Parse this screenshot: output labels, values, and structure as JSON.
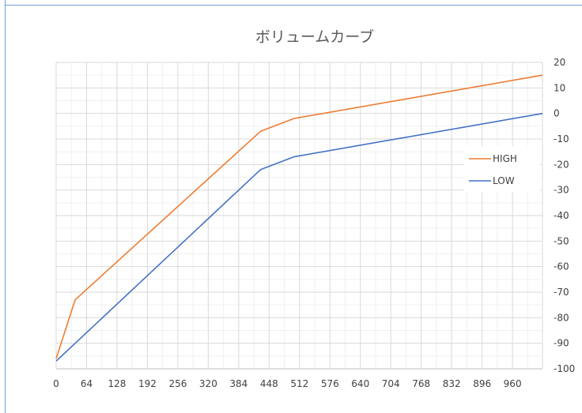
{
  "chart_data": {
    "type": "line",
    "title": "ボリュームカーブ",
    "xlabel": "",
    "ylabel": "",
    "x_ticks": [
      "0",
      "64",
      "128",
      "192",
      "256",
      "320",
      "384",
      "448",
      "512",
      "576",
      "640",
      "704",
      "768",
      "832",
      "896",
      "960"
    ],
    "y_ticks": [
      "20",
      "10",
      "0",
      "-10",
      "-20",
      "-30",
      "-40",
      "-50",
      "-60",
      "-70",
      "-80",
      "-90",
      "-100"
    ],
    "xlim": [
      0,
      1023
    ],
    "ylim": [
      -100,
      20
    ],
    "y_axis_side": "right",
    "grid": true,
    "legend_position": "right",
    "series": [
      {
        "name": "HIGH",
        "color": "#ed7d31",
        "x": [
          0,
          40,
          430,
          500,
          1023
        ],
        "y": [
          -96,
          -73,
          -7,
          -2,
          15
        ]
      },
      {
        "name": "LOW",
        "color": "#4472c4",
        "x": [
          0,
          430,
          500,
          1023
        ],
        "y": [
          -97,
          -22,
          -17,
          0
        ]
      }
    ]
  }
}
